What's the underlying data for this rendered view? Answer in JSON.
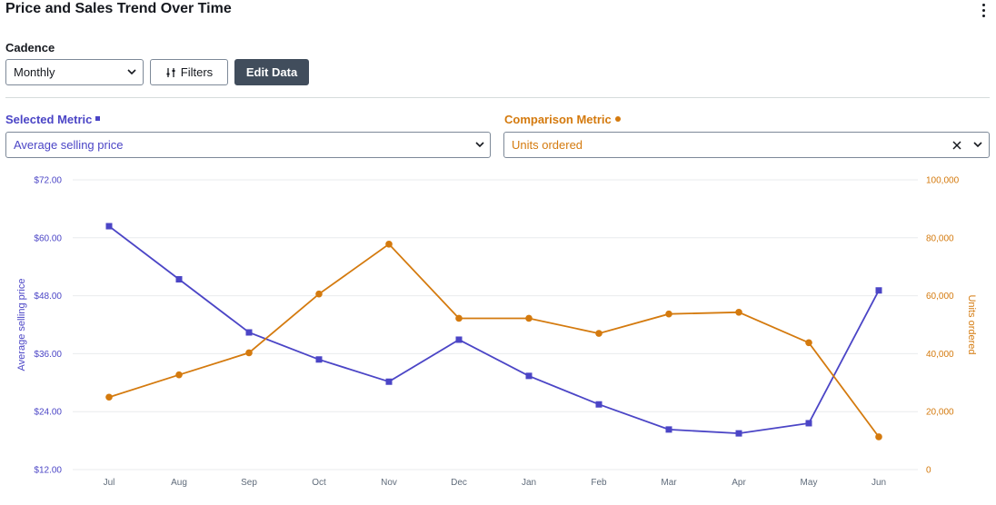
{
  "header": {
    "title": "Price and Sales Trend Over Time",
    "menu_icon": "more-vertical-icon"
  },
  "controls": {
    "cadence_label": "Cadence",
    "cadence_value": "Monthly",
    "filters_label": "Filters",
    "filters_icon": "sliders-icon",
    "edit_data_label": "Edit Data"
  },
  "metrics": {
    "selected_label": "Selected Metric",
    "selected_value": "Average selling price",
    "comparison_label": "Comparison Metric",
    "comparison_value": "Units ordered"
  },
  "colors": {
    "primary_series": "#4b45c6",
    "secondary_series": "#d47a0e",
    "dark_button": "#414d5c"
  },
  "chart_data": {
    "type": "line",
    "categories": [
      "Jul",
      "Aug",
      "Sep",
      "Oct",
      "Nov",
      "Dec",
      "Jan",
      "Feb",
      "Mar",
      "Apr",
      "May",
      "Jun"
    ],
    "series": [
      {
        "name": "Average selling price",
        "axis": "left",
        "marker": "square",
        "values": [
          62.4,
          51.4,
          40.4,
          34.8,
          30.2,
          38.9,
          31.4,
          25.5,
          20.3,
          19.5,
          21.6,
          49.1
        ]
      },
      {
        "name": "Units ordered",
        "axis": "right",
        "marker": "circle",
        "values": [
          25000,
          32700,
          40300,
          60600,
          77800,
          52200,
          52200,
          47000,
          53700,
          54300,
          43800,
          11300
        ]
      }
    ],
    "ylabel": "Average selling price",
    "y2label": "Units ordered",
    "ylim": [
      12,
      72
    ],
    "y2lim": [
      0,
      100000
    ],
    "yticks": [
      "$12.00",
      "$24.00",
      "$36.00",
      "$48.00",
      "$60.00",
      "$72.00"
    ],
    "y2ticks": [
      "0",
      "20,000",
      "40,000",
      "60,000",
      "80,000",
      "100,000"
    ],
    "grid": true
  }
}
